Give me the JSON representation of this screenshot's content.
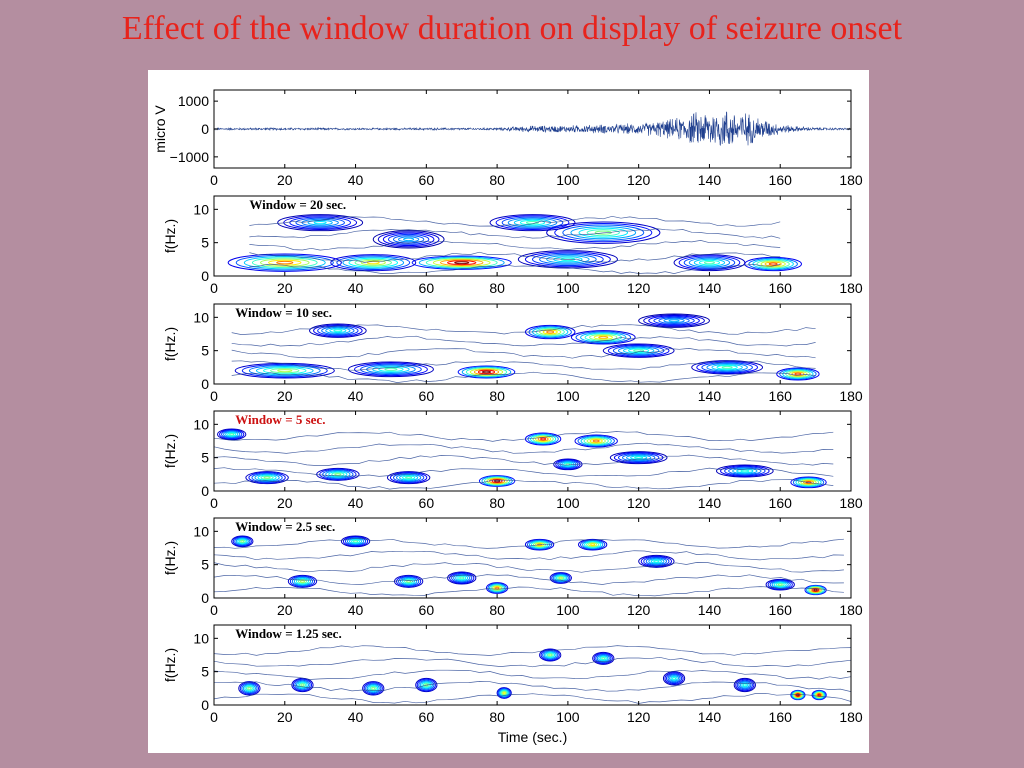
{
  "slide": {
    "title": "Effect of the window duration on display of seizure onset"
  },
  "colors": {
    "background": "#b48ea0",
    "title": "#e8231c",
    "trace": "#1f3f8f",
    "highlight_label": "#cc1111"
  },
  "chart_data": [
    {
      "type": "line",
      "ylabel": "micro V",
      "xlim": [
        0,
        180
      ],
      "ylim": [
        -1400,
        1400
      ],
      "xticks": [
        "0",
        "20",
        "40",
        "60",
        "80",
        "100",
        "120",
        "140",
        "160",
        "180"
      ],
      "yticks": [
        "1000",
        "0",
        "−1000"
      ],
      "ytick_values": [
        1000,
        0,
        -1000
      ],
      "envelope": {
        "t": [
          0,
          20,
          40,
          60,
          80,
          84,
          90,
          100,
          110,
          120,
          130,
          135,
          140,
          145,
          150,
          155,
          160,
          165,
          170,
          180
        ],
        "amplitude_uv": [
          40,
          50,
          40,
          45,
          50,
          90,
          140,
          150,
          190,
          230,
          420,
          650,
          800,
          850,
          700,
          450,
          200,
          110,
          60,
          40
        ]
      }
    },
    {
      "type": "heatmap",
      "label": "Window = 20 sec.",
      "ylabel": "f(Hz.)",
      "xlim": [
        0,
        180
      ],
      "ylim": [
        0,
        12
      ],
      "xticks": [
        "0",
        "20",
        "40",
        "60",
        "80",
        "100",
        "120",
        "140",
        "160",
        "180"
      ],
      "yticks": [
        "10",
        "5",
        "0"
      ],
      "ytick_values": [
        10,
        5,
        0
      ],
      "highlight": false,
      "time_range": [
        10,
        160
      ],
      "blobs": [
        {
          "t": 70,
          "f": 2.0,
          "dt": 14,
          "df": 1.0,
          "p": 1.0
        },
        {
          "t": 20,
          "f": 2.0,
          "dt": 16,
          "df": 1.3,
          "p": 0.75
        },
        {
          "t": 45,
          "f": 2.0,
          "dt": 12,
          "df": 1.2,
          "p": 0.65
        },
        {
          "t": 158,
          "f": 1.8,
          "dt": 8,
          "df": 1.0,
          "p": 0.8
        },
        {
          "t": 140,
          "f": 2.0,
          "dt": 10,
          "df": 1.2,
          "p": 0.45
        },
        {
          "t": 110,
          "f": 6.5,
          "dt": 16,
          "df": 1.6,
          "p": 0.5
        },
        {
          "t": 90,
          "f": 8.0,
          "dt": 12,
          "df": 1.2,
          "p": 0.45
        },
        {
          "t": 30,
          "f": 8.0,
          "dt": 12,
          "df": 1.2,
          "p": 0.35
        },
        {
          "t": 100,
          "f": 2.5,
          "dt": 14,
          "df": 1.3,
          "p": 0.4
        },
        {
          "t": 55,
          "f": 5.5,
          "dt": 10,
          "df": 1.3,
          "p": 0.3
        }
      ]
    },
    {
      "type": "heatmap",
      "label": "Window = 10 sec.",
      "ylabel": "f(Hz.)",
      "xlim": [
        0,
        180
      ],
      "ylim": [
        0,
        12
      ],
      "xticks": [
        "0",
        "20",
        "40",
        "60",
        "80",
        "100",
        "120",
        "140",
        "160",
        "180"
      ],
      "yticks": [
        "10",
        "5",
        "0"
      ],
      "ytick_values": [
        10,
        5,
        0
      ],
      "highlight": false,
      "time_range": [
        5,
        170
      ],
      "blobs": [
        {
          "t": 77,
          "f": 1.8,
          "dt": 8,
          "df": 0.9,
          "p": 1.0
        },
        {
          "t": 95,
          "f": 7.8,
          "dt": 7,
          "df": 1.0,
          "p": 0.75
        },
        {
          "t": 110,
          "f": 7.0,
          "dt": 9,
          "df": 1.0,
          "p": 0.7
        },
        {
          "t": 165,
          "f": 1.5,
          "dt": 6,
          "df": 0.9,
          "p": 0.8
        },
        {
          "t": 20,
          "f": 2.0,
          "dt": 14,
          "df": 1.1,
          "p": 0.55
        },
        {
          "t": 50,
          "f": 2.2,
          "dt": 12,
          "df": 1.1,
          "p": 0.45
        },
        {
          "t": 35,
          "f": 8.0,
          "dt": 8,
          "df": 1.0,
          "p": 0.4
        },
        {
          "t": 120,
          "f": 5.0,
          "dt": 10,
          "df": 1.0,
          "p": 0.45
        },
        {
          "t": 145,
          "f": 2.5,
          "dt": 10,
          "df": 1.0,
          "p": 0.45
        },
        {
          "t": 130,
          "f": 9.5,
          "dt": 10,
          "df": 1.0,
          "p": 0.3
        }
      ]
    },
    {
      "type": "heatmap",
      "label": "Window = 5 sec.",
      "ylabel": "f(Hz.)",
      "xlim": [
        0,
        180
      ],
      "ylim": [
        0,
        12
      ],
      "xticks": [
        "0",
        "20",
        "40",
        "60",
        "80",
        "100",
        "120",
        "140",
        "160",
        "180"
      ],
      "yticks": [
        "10",
        "5",
        "0"
      ],
      "ytick_values": [
        10,
        5,
        0
      ],
      "highlight": true,
      "time_range": [
        0,
        175
      ],
      "blobs": [
        {
          "t": 80,
          "f": 1.5,
          "dt": 5,
          "df": 0.8,
          "p": 1.0
        },
        {
          "t": 93,
          "f": 7.8,
          "dt": 5,
          "df": 0.9,
          "p": 0.85
        },
        {
          "t": 108,
          "f": 7.5,
          "dt": 6,
          "df": 0.9,
          "p": 0.75
        },
        {
          "t": 168,
          "f": 1.3,
          "dt": 5,
          "df": 0.8,
          "p": 0.8
        },
        {
          "t": 5,
          "f": 8.5,
          "dt": 4,
          "df": 0.8,
          "p": 0.45
        },
        {
          "t": 15,
          "f": 2.0,
          "dt": 6,
          "df": 0.9,
          "p": 0.5
        },
        {
          "t": 35,
          "f": 2.5,
          "dt": 6,
          "df": 0.9,
          "p": 0.5
        },
        {
          "t": 55,
          "f": 2.0,
          "dt": 6,
          "df": 0.9,
          "p": 0.45
        },
        {
          "t": 100,
          "f": 4.0,
          "dt": 4,
          "df": 0.8,
          "p": 0.45
        },
        {
          "t": 120,
          "f": 5.0,
          "dt": 8,
          "df": 0.9,
          "p": 0.4
        },
        {
          "t": 150,
          "f": 3.0,
          "dt": 8,
          "df": 0.9,
          "p": 0.4
        }
      ]
    },
    {
      "type": "heatmap",
      "label": "Window = 2.5 sec.",
      "ylabel": "f(Hz.)",
      "xlim": [
        0,
        180
      ],
      "ylim": [
        0,
        12
      ],
      "xticks": [
        "0",
        "20",
        "40",
        "60",
        "80",
        "100",
        "120",
        "140",
        "160",
        "180"
      ],
      "yticks": [
        "10",
        "5",
        "0"
      ],
      "ytick_values": [
        10,
        5,
        0
      ],
      "highlight": false,
      "time_range": [
        0,
        178
      ],
      "blobs": [
        {
          "t": 170,
          "f": 1.2,
          "dt": 3,
          "df": 0.7,
          "p": 1.0
        },
        {
          "t": 80,
          "f": 1.5,
          "dt": 3,
          "df": 0.8,
          "p": 0.75
        },
        {
          "t": 92,
          "f": 8.0,
          "dt": 4,
          "df": 0.8,
          "p": 0.7
        },
        {
          "t": 107,
          "f": 8.0,
          "dt": 4,
          "df": 0.8,
          "p": 0.65
        },
        {
          "t": 8,
          "f": 8.5,
          "dt": 3,
          "df": 0.8,
          "p": 0.5
        },
        {
          "t": 25,
          "f": 2.5,
          "dt": 4,
          "df": 0.9,
          "p": 0.55
        },
        {
          "t": 40,
          "f": 8.5,
          "dt": 4,
          "df": 0.8,
          "p": 0.45
        },
        {
          "t": 55,
          "f": 2.5,
          "dt": 4,
          "df": 0.9,
          "p": 0.5
        },
        {
          "t": 70,
          "f": 3.0,
          "dt": 4,
          "df": 0.9,
          "p": 0.45
        },
        {
          "t": 98,
          "f": 3.0,
          "dt": 3,
          "df": 0.8,
          "p": 0.55
        },
        {
          "t": 125,
          "f": 5.5,
          "dt": 5,
          "df": 0.9,
          "p": 0.4
        },
        {
          "t": 160,
          "f": 2.0,
          "dt": 4,
          "df": 0.8,
          "p": 0.5
        }
      ]
    },
    {
      "type": "heatmap",
      "label": "Window = 1.25 sec.",
      "ylabel": "f(Hz.)",
      "xlabel": "Time (sec.)",
      "xlim": [
        0,
        180
      ],
      "ylim": [
        0,
        12
      ],
      "xticks": [
        "0",
        "20",
        "40",
        "60",
        "80",
        "100",
        "120",
        "140",
        "160",
        "180"
      ],
      "yticks": [
        "10",
        "5",
        "0"
      ],
      "ytick_values": [
        10,
        5,
        0
      ],
      "highlight": false,
      "time_range": [
        0,
        180
      ],
      "blobs": [
        {
          "t": 165,
          "f": 1.5,
          "dt": 2,
          "df": 0.7,
          "p": 1.0
        },
        {
          "t": 171,
          "f": 1.5,
          "dt": 2,
          "df": 0.7,
          "p": 0.9
        },
        {
          "t": 82,
          "f": 1.8,
          "dt": 2,
          "df": 0.8,
          "p": 0.6
        },
        {
          "t": 10,
          "f": 2.5,
          "dt": 3,
          "df": 1.0,
          "p": 0.5
        },
        {
          "t": 25,
          "f": 3.0,
          "dt": 3,
          "df": 1.0,
          "p": 0.5
        },
        {
          "t": 45,
          "f": 2.5,
          "dt": 3,
          "df": 1.0,
          "p": 0.5
        },
        {
          "t": 60,
          "f": 3.0,
          "dt": 3,
          "df": 1.0,
          "p": 0.5
        },
        {
          "t": 95,
          "f": 7.5,
          "dt": 3,
          "df": 0.9,
          "p": 0.5
        },
        {
          "t": 110,
          "f": 7.0,
          "dt": 3,
          "df": 0.9,
          "p": 0.45
        },
        {
          "t": 130,
          "f": 4.0,
          "dt": 3,
          "df": 1.0,
          "p": 0.4
        },
        {
          "t": 150,
          "f": 3.0,
          "dt": 3,
          "df": 1.0,
          "p": 0.4
        }
      ]
    }
  ]
}
